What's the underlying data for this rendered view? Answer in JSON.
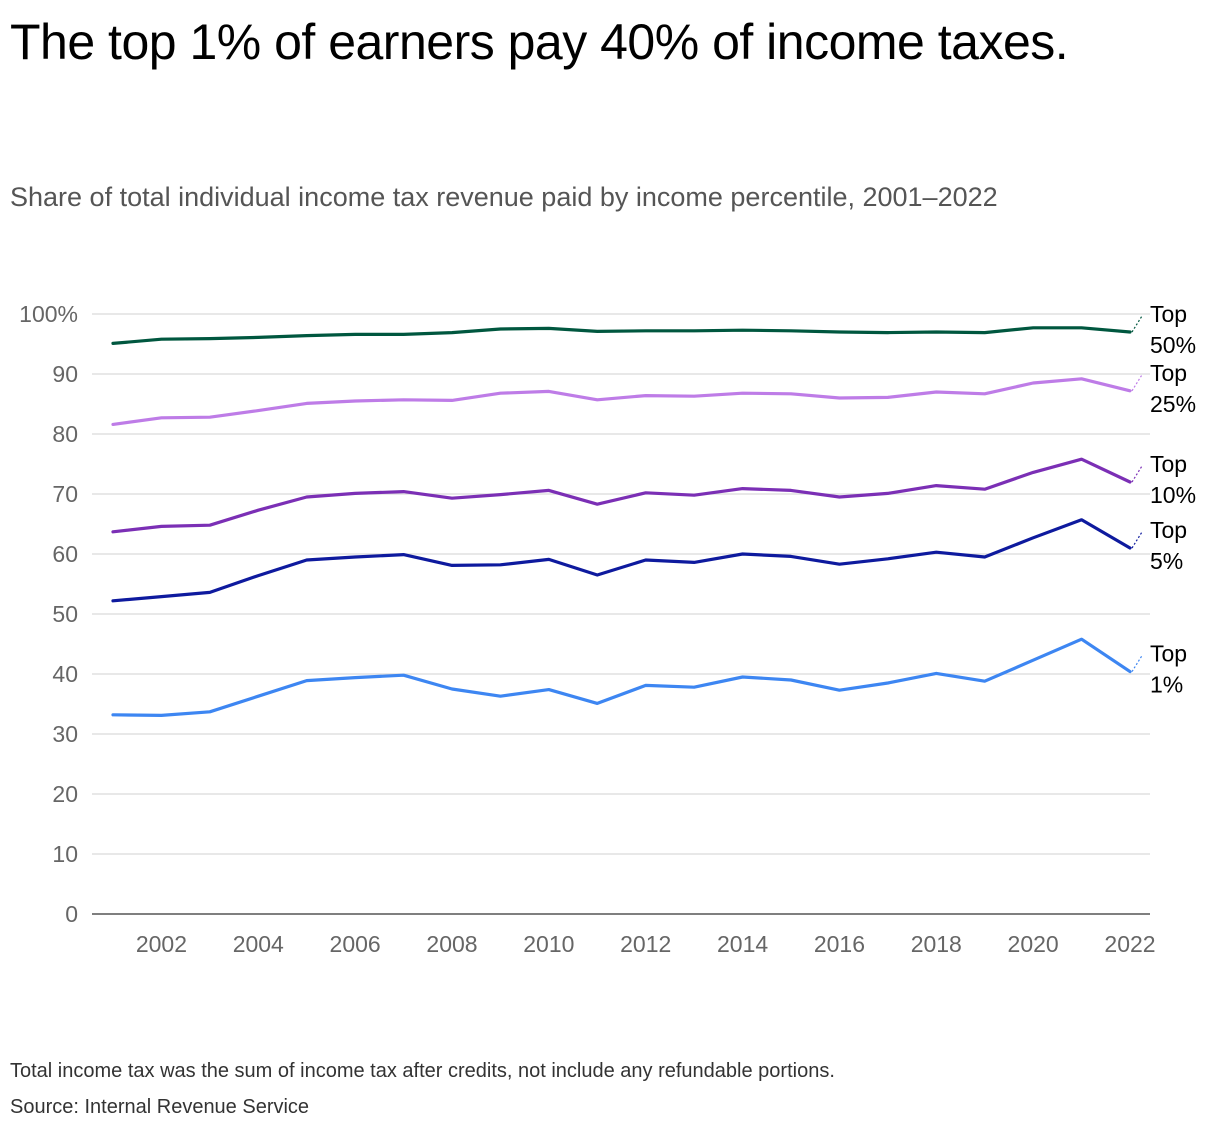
{
  "title": "The top 1% of earners pay 40% of income taxes.",
  "subtitle": "Share of total individual income tax revenue paid by income percentile, 2001–2022",
  "footnote": "Total income tax was the sum of income tax after credits, not include any refundable portions.",
  "source": "Source: Internal Revenue Service",
  "chart_data": {
    "type": "line",
    "x": [
      2001,
      2002,
      2003,
      2004,
      2005,
      2006,
      2007,
      2008,
      2009,
      2010,
      2011,
      2012,
      2013,
      2014,
      2015,
      2016,
      2017,
      2018,
      2019,
      2020,
      2021,
      2022
    ],
    "x_tick_labels": [
      "2002",
      "2004",
      "2006",
      "2008",
      "2010",
      "2012",
      "2014",
      "2016",
      "2018",
      "2020",
      "2022"
    ],
    "x_tick_values": [
      2002,
      2004,
      2006,
      2008,
      2010,
      2012,
      2014,
      2016,
      2018,
      2020,
      2022
    ],
    "y_tick_labels": [
      "100%",
      "90",
      "80",
      "70",
      "60",
      "50",
      "40",
      "30",
      "20",
      "10",
      "0"
    ],
    "y_tick_values": [
      100,
      90,
      80,
      70,
      60,
      50,
      40,
      30,
      20,
      10,
      0
    ],
    "ylim": [
      0,
      100
    ],
    "xlim": [
      2001,
      2022
    ],
    "grid": "horizontal",
    "legend": "direct labels at right end of lines",
    "series": [
      {
        "name": "Top 50%",
        "label_lines": [
          "Top",
          "50%"
        ],
        "color": "#00573f",
        "values": [
          95.1,
          95.8,
          95.9,
          96.1,
          96.4,
          96.6,
          96.6,
          96.9,
          97.5,
          97.6,
          97.1,
          97.2,
          97.2,
          97.3,
          97.2,
          97.0,
          96.9,
          97.0,
          96.9,
          97.7,
          97.7,
          97.0
        ]
      },
      {
        "name": "Top 25%",
        "label_lines": [
          "Top",
          "25%"
        ],
        "color": "#be7ce7",
        "values": [
          81.6,
          82.7,
          82.8,
          83.9,
          85.1,
          85.5,
          85.7,
          85.6,
          86.8,
          87.1,
          85.7,
          86.4,
          86.3,
          86.8,
          86.7,
          86.0,
          86.1,
          87.0,
          86.7,
          88.5,
          89.2,
          87.2
        ]
      },
      {
        "name": "Top 10%",
        "label_lines": [
          "Top",
          "10%"
        ],
        "color": "#7b2fb5",
        "values": [
          63.7,
          64.6,
          64.8,
          67.3,
          69.5,
          70.1,
          70.4,
          69.3,
          69.9,
          70.6,
          68.3,
          70.2,
          69.8,
          70.9,
          70.6,
          69.5,
          70.1,
          71.4,
          70.8,
          73.6,
          75.8,
          72.0
        ]
      },
      {
        "name": "Top 5%",
        "label_lines": [
          "Top",
          "5%"
        ],
        "color": "#0e1a9e",
        "values": [
          52.2,
          52.9,
          53.6,
          56.4,
          59.0,
          59.5,
          59.9,
          58.1,
          58.2,
          59.1,
          56.5,
          59.0,
          58.6,
          60.0,
          59.6,
          58.3,
          59.2,
          60.3,
          59.5,
          62.7,
          65.7,
          61.0
        ]
      },
      {
        "name": "Top 1%",
        "label_lines": [
          "Top",
          "1%"
        ],
        "color": "#3d86f2",
        "values": [
          33.2,
          33.1,
          33.7,
          36.3,
          38.9,
          39.4,
          39.8,
          37.5,
          36.3,
          37.4,
          35.1,
          38.1,
          37.8,
          39.5,
          39.0,
          37.3,
          38.5,
          40.1,
          38.8,
          42.3,
          45.8,
          40.4
        ]
      }
    ]
  }
}
